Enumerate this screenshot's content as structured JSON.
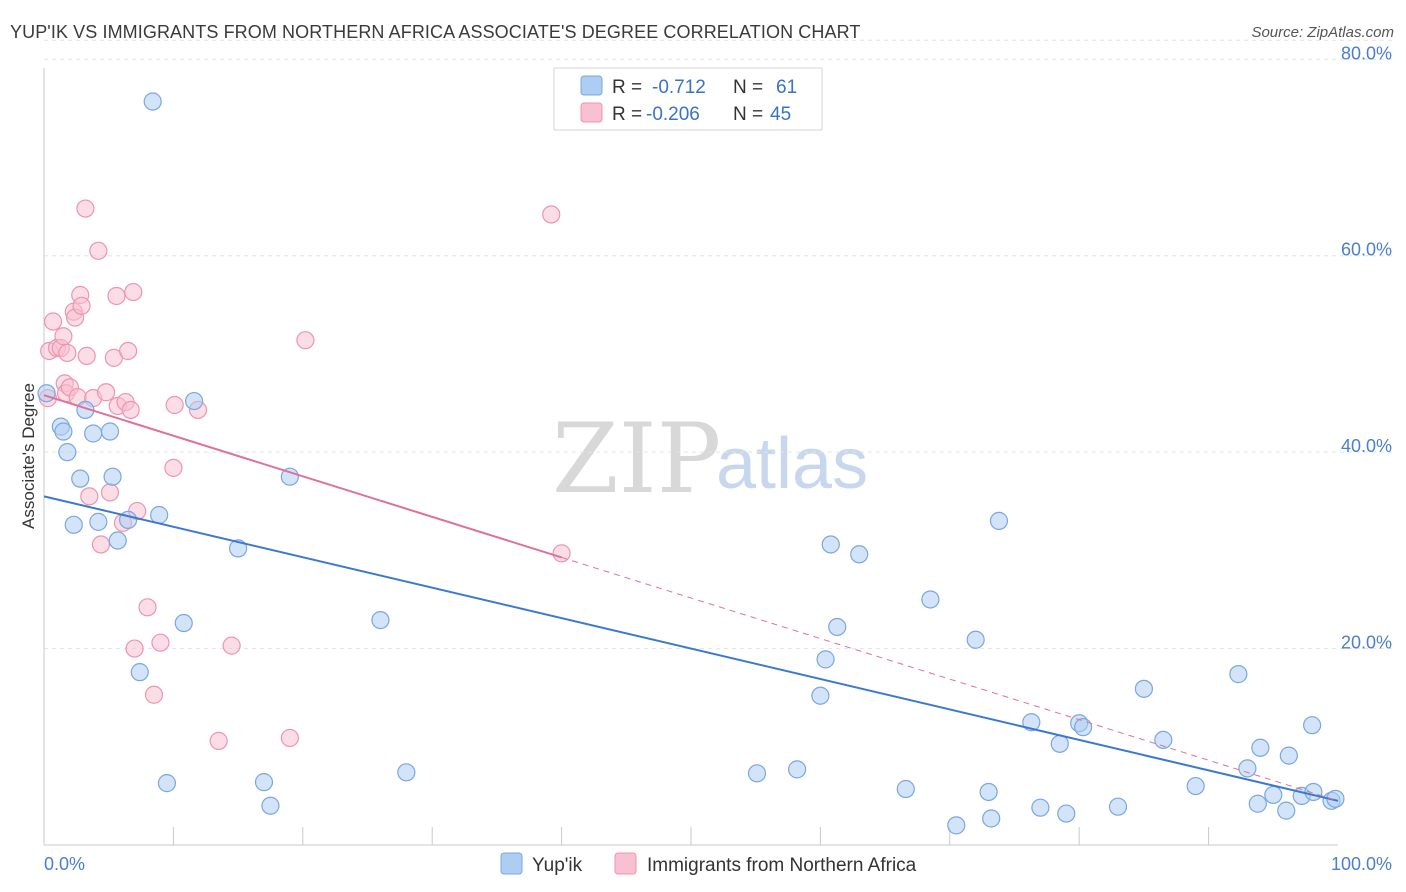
{
  "header": {
    "title": "YUP'IK VS IMMIGRANTS FROM NORTHERN AFRICA ASSOCIATE'S DEGREE CORRELATION CHART",
    "source": "Source: ZipAtlas.com"
  },
  "watermark": {
    "zip": "ZIP",
    "atlas": "atlas"
  },
  "colors": {
    "blue_fill": "#aecdf3",
    "blue_stroke": "#7aa7e0",
    "blue_line": "#3a78d4",
    "pink_fill": "#f7c1d1",
    "pink_stroke": "#ee94b0",
    "pink_line": "#e0709a",
    "grid": "#e3e3e3",
    "tick_text": "#4a7fd0"
  },
  "legend": {
    "rows": [
      {
        "r_label": "R =",
        "r_value": "-0.712",
        "n_label": "N =",
        "n_value": "61"
      },
      {
        "r_label": "R =",
        "r_value": "-0.206",
        "n_label": "N =",
        "n_value": "45"
      }
    ]
  },
  "chart_data": {
    "type": "scatter",
    "title": "YUP'IK VS IMMIGRANTS FROM NORTHERN AFRICA ASSOCIATE'S DEGREE CORRELATION CHART",
    "xlabel": "",
    "ylabel": "Associate's Degree",
    "xlim": [
      0,
      100
    ],
    "ylim": [
      0,
      84
    ],
    "x_tick_labels": [
      {
        "value": 0,
        "label": "0.0%"
      },
      {
        "value": 100,
        "label": "100.0%"
      }
    ],
    "x_minor_ticks": [
      10,
      20,
      30,
      40,
      50,
      60,
      70,
      80,
      90
    ],
    "y_ticks": [
      {
        "value": 20,
        "label": "20.0%"
      },
      {
        "value": 40,
        "label": "40.0%"
      },
      {
        "value": 60,
        "label": "60.0%"
      },
      {
        "value": 80,
        "label": "80.0%"
      }
    ],
    "series": [
      {
        "name": "Yup'ik",
        "color": "#aecdf3",
        "trend": {
          "x0": 0,
          "y0": 35.5,
          "x1": 100,
          "y1": 4.5,
          "dashed_from": null
        },
        "points": [
          [
            0.2,
            46.0
          ],
          [
            1.3,
            42.6
          ],
          [
            1.5,
            42.1
          ],
          [
            1.8,
            40.0
          ],
          [
            2.3,
            32.6
          ],
          [
            2.8,
            37.3
          ],
          [
            3.2,
            44.3
          ],
          [
            3.8,
            41.9
          ],
          [
            4.2,
            32.9
          ],
          [
            5.1,
            42.1
          ],
          [
            5.3,
            37.5
          ],
          [
            5.7,
            31.0
          ],
          [
            6.5,
            33.1
          ],
          [
            7.4,
            17.6
          ],
          [
            8.4,
            75.7
          ],
          [
            8.9,
            33.6
          ],
          [
            9.5,
            6.3
          ],
          [
            10.8,
            22.6
          ],
          [
            11.6,
            45.2
          ],
          [
            15.0,
            30.2
          ],
          [
            17.0,
            6.4
          ],
          [
            17.5,
            4.0
          ],
          [
            19.0,
            37.5
          ],
          [
            26.0,
            22.9
          ],
          [
            28.0,
            7.4
          ],
          [
            55.1,
            7.3
          ],
          [
            58.2,
            7.7
          ],
          [
            60.0,
            15.2
          ],
          [
            60.4,
            18.9
          ],
          [
            60.8,
            30.6
          ],
          [
            61.3,
            22.2
          ],
          [
            63.0,
            29.6
          ],
          [
            66.6,
            5.7
          ],
          [
            68.5,
            25.0
          ],
          [
            70.5,
            2.0
          ],
          [
            72.0,
            20.9
          ],
          [
            73.0,
            5.4
          ],
          [
            73.2,
            2.7
          ],
          [
            73.8,
            33.0
          ],
          [
            76.3,
            12.5
          ],
          [
            77.0,
            3.8
          ],
          [
            78.5,
            10.3
          ],
          [
            79.0,
            3.2
          ],
          [
            80.0,
            12.4
          ],
          [
            80.3,
            12.0
          ],
          [
            83.0,
            3.9
          ],
          [
            85.0,
            15.9
          ],
          [
            86.5,
            10.7
          ],
          [
            89.0,
            6.0
          ],
          [
            92.3,
            17.4
          ],
          [
            93.0,
            7.8
          ],
          [
            93.8,
            4.2
          ],
          [
            94.0,
            9.9
          ],
          [
            95.0,
            5.1
          ],
          [
            96.0,
            3.5
          ],
          [
            96.2,
            9.1
          ],
          [
            97.2,
            5.0
          ],
          [
            98.0,
            12.2
          ],
          [
            98.1,
            5.4
          ],
          [
            99.5,
            4.5
          ],
          [
            99.8,
            4.7
          ]
        ]
      },
      {
        "name": "Immigrants from Northern Africa",
        "color": "#f7c1d1",
        "trend": {
          "x0": 0,
          "y0": 45.8,
          "x1": 100,
          "y1": 4.5,
          "dashed_from": 40
        },
        "points": [
          [
            0.3,
            45.5
          ],
          [
            0.4,
            50.3
          ],
          [
            0.7,
            53.3
          ],
          [
            1.0,
            50.6
          ],
          [
            1.3,
            50.6
          ],
          [
            1.5,
            51.8
          ],
          [
            1.6,
            47.0
          ],
          [
            1.7,
            46.0
          ],
          [
            1.8,
            50.1
          ],
          [
            2.0,
            46.6
          ],
          [
            2.3,
            54.3
          ],
          [
            2.4,
            53.7
          ],
          [
            2.6,
            45.6
          ],
          [
            2.8,
            56.0
          ],
          [
            2.9,
            54.9
          ],
          [
            3.2,
            64.8
          ],
          [
            3.3,
            49.8
          ],
          [
            3.5,
            35.5
          ],
          [
            3.8,
            45.5
          ],
          [
            4.2,
            60.5
          ],
          [
            4.4,
            30.6
          ],
          [
            4.8,
            46.1
          ],
          [
            5.1,
            35.9
          ],
          [
            5.4,
            49.6
          ],
          [
            5.6,
            55.9
          ],
          [
            5.7,
            44.7
          ],
          [
            6.1,
            32.8
          ],
          [
            6.3,
            45.1
          ],
          [
            6.5,
            50.3
          ],
          [
            6.7,
            44.3
          ],
          [
            6.9,
            56.3
          ],
          [
            7.0,
            20.0
          ],
          [
            7.2,
            34.0
          ],
          [
            8.0,
            24.2
          ],
          [
            8.5,
            15.3
          ],
          [
            9.0,
            20.6
          ],
          [
            10.0,
            38.4
          ],
          [
            10.1,
            44.8
          ],
          [
            11.9,
            44.3
          ],
          [
            13.5,
            10.6
          ],
          [
            14.5,
            20.3
          ],
          [
            19.0,
            10.9
          ],
          [
            20.2,
            51.4
          ],
          [
            39.2,
            64.2
          ],
          [
            40.0,
            29.7
          ]
        ]
      }
    ]
  }
}
